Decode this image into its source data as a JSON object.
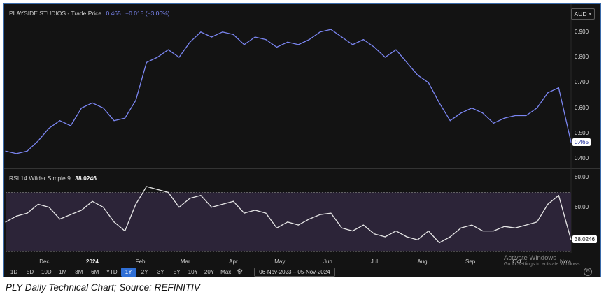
{
  "header": {
    "company": "PLAYSIDE STUDIOS - Trade Price",
    "price": "0.465",
    "change": "−0.015 (−3.06%)",
    "currency": "AUD"
  },
  "rsi_header": {
    "label": "RSI 14 Wilder Simple 9",
    "value": "38.0246"
  },
  "toolbar": {
    "ranges": [
      "1D",
      "5D",
      "10D",
      "1M",
      "3M",
      "6M",
      "YTD",
      "1Y",
      "2Y",
      "3Y",
      "5Y",
      "10Y",
      "20Y",
      "Max"
    ],
    "active": "1Y",
    "date_range": "06-Nov-2023  –  05-Nov-2024"
  },
  "watermark": {
    "line1": "Activate Windows",
    "line2": "Go to Settings to activate Windows."
  },
  "caption": "PLY Daily Technical Chart; Source: REFINITIV",
  "colors": {
    "price_line": "#7b86f2",
    "rsi_line": "#e6e6e6",
    "rsi_band": "#2c2438",
    "active_btn": "#2f6fd6",
    "price_badge_bg": "#ffffff",
    "rsi_badge_bg": "#ffffff"
  },
  "chart_data": [
    {
      "type": "line",
      "name": "price",
      "ylim": [
        0.37,
        0.96
      ],
      "yticks": [
        0.9,
        0.8,
        0.7,
        0.6,
        0.5,
        0.4
      ],
      "ytick_labels": [
        "0.900",
        "0.800",
        "0.700",
        "0.600",
        "0.500",
        "0.400"
      ],
      "last_value_label": "0.465",
      "x": [
        "2023-11-06",
        "2023-11-13",
        "2023-11-20",
        "2023-11-27",
        "2023-12-04",
        "2023-12-11",
        "2023-12-18",
        "2023-12-25",
        "2024-01-01",
        "2024-01-08",
        "2024-01-15",
        "2024-01-22",
        "2024-01-29",
        "2024-02-05",
        "2024-02-12",
        "2024-02-19",
        "2024-02-26",
        "2024-03-04",
        "2024-03-11",
        "2024-03-18",
        "2024-03-25",
        "2024-04-01",
        "2024-04-08",
        "2024-04-15",
        "2024-04-22",
        "2024-04-29",
        "2024-05-06",
        "2024-05-13",
        "2024-05-20",
        "2024-05-27",
        "2024-06-03",
        "2024-06-10",
        "2024-06-17",
        "2024-06-24",
        "2024-07-01",
        "2024-07-08",
        "2024-07-15",
        "2024-07-22",
        "2024-07-29",
        "2024-08-05",
        "2024-08-12",
        "2024-08-19",
        "2024-08-26",
        "2024-09-02",
        "2024-09-09",
        "2024-09-16",
        "2024-09-23",
        "2024-09-30",
        "2024-10-07",
        "2024-10-14",
        "2024-10-21",
        "2024-10-28",
        "2024-11-05"
      ],
      "values": [
        0.43,
        0.42,
        0.43,
        0.47,
        0.52,
        0.55,
        0.53,
        0.6,
        0.62,
        0.6,
        0.55,
        0.56,
        0.63,
        0.78,
        0.8,
        0.83,
        0.8,
        0.86,
        0.9,
        0.88,
        0.9,
        0.89,
        0.85,
        0.88,
        0.87,
        0.84,
        0.86,
        0.85,
        0.87,
        0.9,
        0.91,
        0.88,
        0.85,
        0.87,
        0.84,
        0.8,
        0.83,
        0.78,
        0.73,
        0.7,
        0.62,
        0.55,
        0.58,
        0.6,
        0.58,
        0.54,
        0.56,
        0.57,
        0.57,
        0.6,
        0.66,
        0.68,
        0.465
      ]
    },
    {
      "type": "line",
      "name": "rsi",
      "ylim": [
        32,
        82
      ],
      "yticks": [
        80,
        60
      ],
      "ytick_labels": [
        "80.00",
        "60.00"
      ],
      "band": [
        70,
        30
      ],
      "last_value_label": "38.0246",
      "x": [
        "2023-11-06",
        "2023-11-13",
        "2023-11-20",
        "2023-11-27",
        "2023-12-04",
        "2023-12-11",
        "2023-12-18",
        "2023-12-25",
        "2024-01-01",
        "2024-01-08",
        "2024-01-15",
        "2024-01-22",
        "2024-01-29",
        "2024-02-05",
        "2024-02-12",
        "2024-02-19",
        "2024-02-26",
        "2024-03-04",
        "2024-03-11",
        "2024-03-18",
        "2024-03-25",
        "2024-04-01",
        "2024-04-08",
        "2024-04-15",
        "2024-04-22",
        "2024-04-29",
        "2024-05-06",
        "2024-05-13",
        "2024-05-20",
        "2024-05-27",
        "2024-06-03",
        "2024-06-10",
        "2024-06-17",
        "2024-06-24",
        "2024-07-01",
        "2024-07-08",
        "2024-07-15",
        "2024-07-22",
        "2024-07-29",
        "2024-08-05",
        "2024-08-12",
        "2024-08-19",
        "2024-08-26",
        "2024-09-02",
        "2024-09-09",
        "2024-09-16",
        "2024-09-23",
        "2024-09-30",
        "2024-10-07",
        "2024-10-14",
        "2024-10-21",
        "2024-10-28",
        "2024-11-05"
      ],
      "values": [
        50,
        54,
        56,
        62,
        60,
        52,
        55,
        58,
        64,
        60,
        50,
        44,
        62,
        74,
        72,
        70,
        60,
        66,
        68,
        60,
        62,
        64,
        56,
        58,
        56,
        46,
        50,
        48,
        52,
        55,
        56,
        46,
        44,
        48,
        42,
        40,
        44,
        40,
        38,
        44,
        36,
        40,
        46,
        48,
        44,
        44,
        47,
        46,
        48,
        50,
        62,
        68,
        38
      ]
    }
  ],
  "x_axis": {
    "labels": [
      {
        "date": "2023-12-01",
        "text": "Dec",
        "bold": false
      },
      {
        "date": "2024-01-01",
        "text": "2024",
        "bold": true
      },
      {
        "date": "2024-02-01",
        "text": "Feb",
        "bold": false
      },
      {
        "date": "2024-03-01",
        "text": "Mar",
        "bold": false
      },
      {
        "date": "2024-04-01",
        "text": "Apr",
        "bold": false
      },
      {
        "date": "2024-05-01",
        "text": "May",
        "bold": false
      },
      {
        "date": "2024-06-01",
        "text": "Jun",
        "bold": false
      },
      {
        "date": "2024-07-01",
        "text": "Jul",
        "bold": false
      },
      {
        "date": "2024-08-01",
        "text": "Aug",
        "bold": false
      },
      {
        "date": "2024-09-01",
        "text": "Sep",
        "bold": false
      },
      {
        "date": "2024-10-01",
        "text": "Oct",
        "bold": false
      },
      {
        "date": "2024-11-01",
        "text": "Nov",
        "bold": false
      }
    ]
  }
}
